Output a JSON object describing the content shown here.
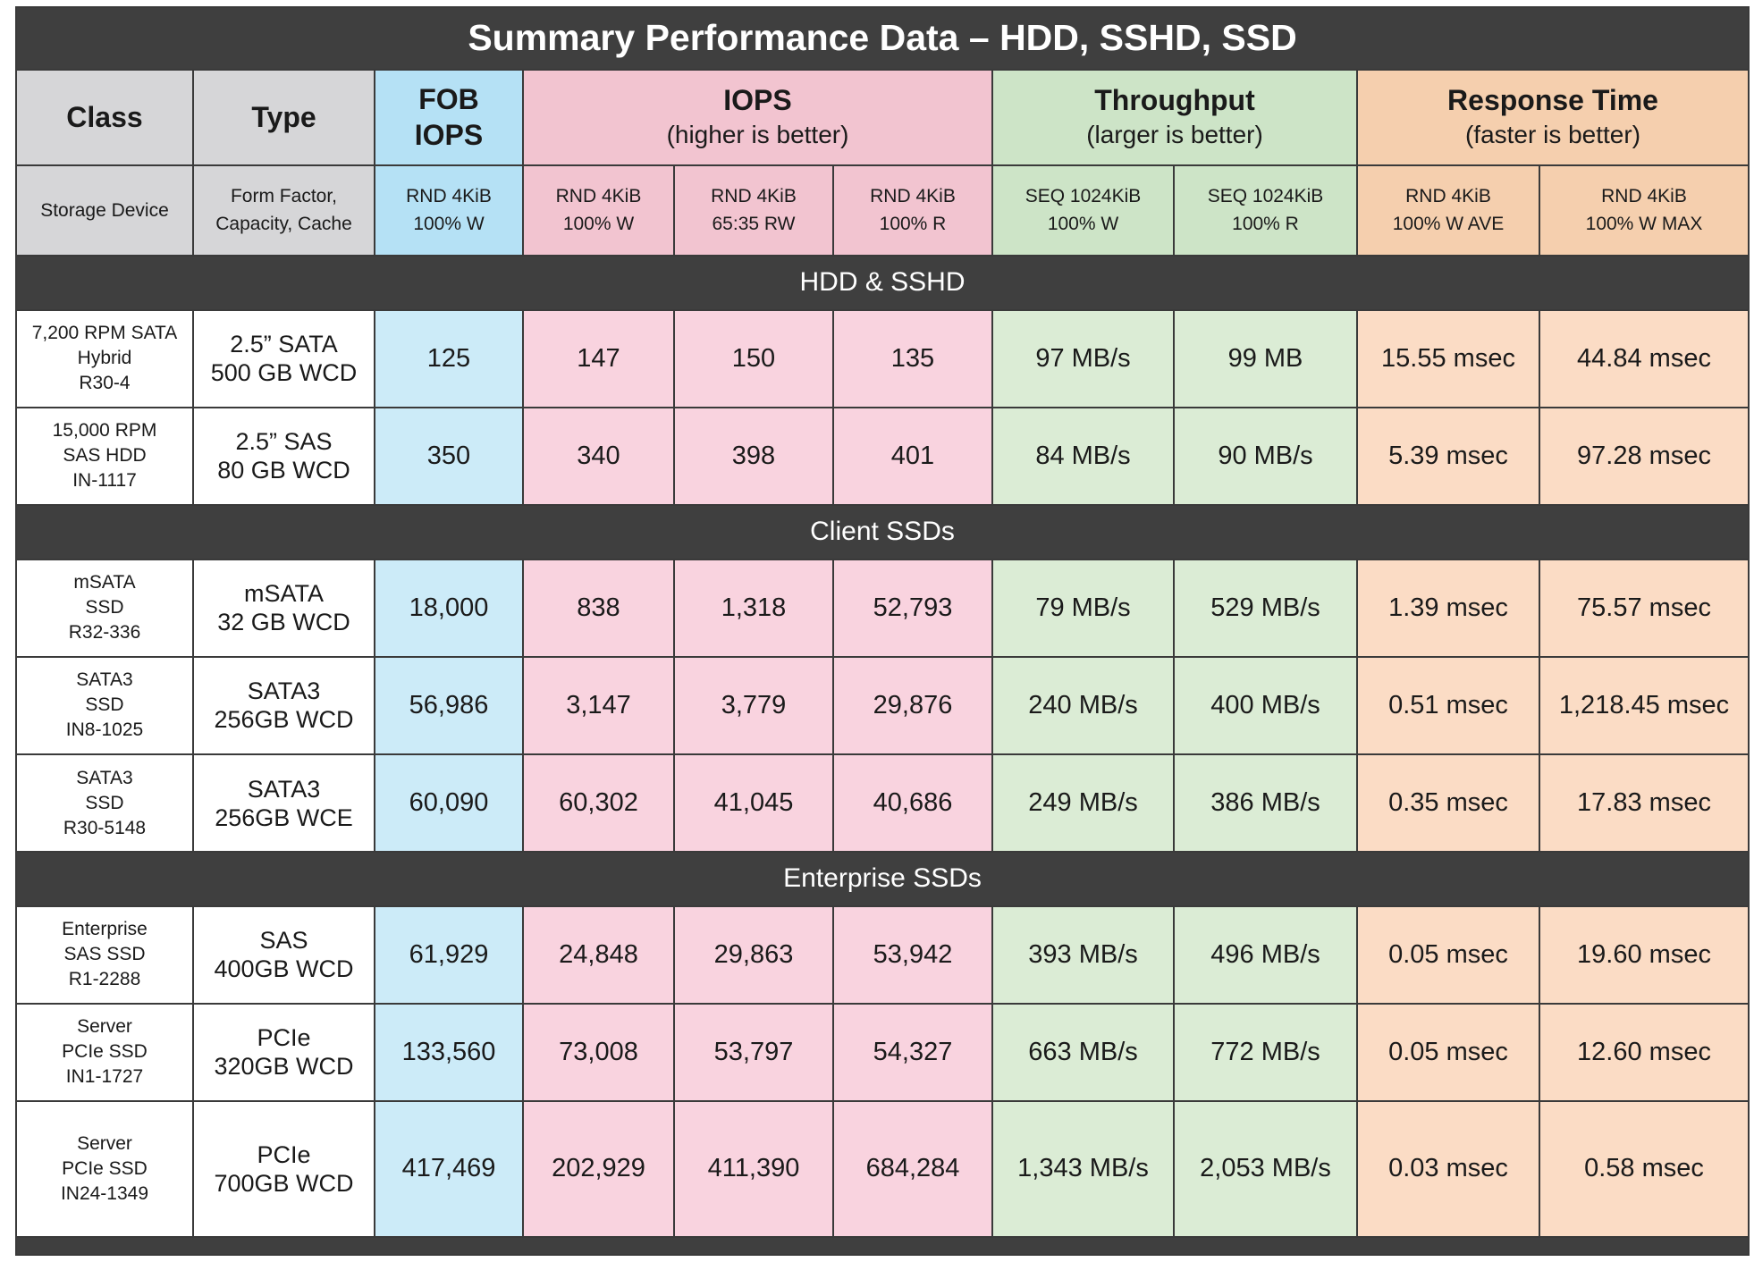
{
  "title": "Summary Performance Data – HDD, SSHD, SSD",
  "header": {
    "class": "Class",
    "type": "Type",
    "fob": [
      "FOB",
      "IOPS"
    ],
    "iops": {
      "main": "IOPS",
      "sub": "(higher is better)"
    },
    "throughput": {
      "main": "Throughput",
      "sub": "(larger is better)"
    },
    "response": {
      "main": "Response Time",
      "sub": "(faster is better)"
    }
  },
  "subheader": [
    [
      "Storage Device"
    ],
    [
      "Form Factor,",
      "Capacity, Cache"
    ],
    [
      "RND 4KiB",
      "100% W"
    ],
    [
      "RND 4KiB",
      "100% W"
    ],
    [
      "RND 4KiB",
      "65:35 RW"
    ],
    [
      "RND 4KiB",
      "100% R"
    ],
    [
      "SEQ 1024KiB",
      "100% W"
    ],
    [
      "SEQ 1024KiB",
      "100% R"
    ],
    [
      "RND 4KiB",
      "100% W AVE"
    ],
    [
      "RND 4KiB",
      "100% W MAX"
    ]
  ],
  "sections": [
    {
      "name": "HDD & SSHD",
      "rows": [
        {
          "device": [
            "7,200 RPM SATA",
            "Hybrid",
            "R30-4"
          ],
          "type": [
            "2.5” SATA",
            "500 GB WCD"
          ],
          "values": [
            "125",
            "147",
            "150",
            "135",
            "97 MB/s",
            "99 MB",
            "15.55 msec",
            "44.84 msec"
          ]
        },
        {
          "device": [
            "15,000 RPM",
            "SAS HDD",
            "IN-1117"
          ],
          "type": [
            "2.5” SAS",
            "80 GB WCD"
          ],
          "values": [
            "350",
            "340",
            "398",
            "401",
            "84 MB/s",
            "90 MB/s",
            "5.39 msec",
            "97.28 msec"
          ]
        }
      ]
    },
    {
      "name": "Client SSDs",
      "rows": [
        {
          "device": [
            "mSATA",
            "SSD",
            "R32-336"
          ],
          "type": [
            "mSATA",
            "32 GB WCD"
          ],
          "values": [
            "18,000",
            "838",
            "1,318",
            "52,793",
            "79 MB/s",
            "529 MB/s",
            "1.39 msec",
            "75.57 msec"
          ]
        },
        {
          "device": [
            "SATA3",
            "SSD",
            "IN8-1025"
          ],
          "type": [
            "SATA3",
            "256GB WCD"
          ],
          "values": [
            "56,986",
            "3,147",
            "3,779",
            "29,876",
            "240 MB/s",
            "400 MB/s",
            "0.51 msec",
            "1,218.45 msec"
          ]
        },
        {
          "device": [
            "SATA3",
            "SSD",
            "R30-5148"
          ],
          "type": [
            "SATA3",
            "256GB WCE"
          ],
          "values": [
            "60,090",
            "60,302",
            "41,045",
            "40,686",
            "249 MB/s",
            "386 MB/s",
            "0.35 msec",
            "17.83 msec"
          ]
        }
      ]
    },
    {
      "name": "Enterprise SSDs",
      "rows": [
        {
          "device": [
            "Enterprise",
            "SAS SSD",
            "R1-2288"
          ],
          "type": [
            "SAS",
            "400GB WCD"
          ],
          "values": [
            "61,929",
            "24,848",
            "29,863",
            "53,942",
            "393 MB/s",
            "496 MB/s",
            "0.05 msec",
            "19.60 msec"
          ]
        },
        {
          "device": [
            "Server",
            "PCIe SSD",
            "IN1-1727"
          ],
          "type": [
            "PCIe",
            "320GB WCD"
          ],
          "values": [
            "133,560",
            "73,008",
            "53,797",
            "54,327",
            "663 MB/s",
            "772 MB/s",
            "0.05 msec",
            "12.60 msec"
          ]
        },
        {
          "device": [
            "Server",
            "PCIe SSD",
            "IN24-1349"
          ],
          "type": [
            "PCIe",
            "700GB WCD"
          ],
          "values": [
            "417,469",
            "202,929",
            "411,390",
            "684,284",
            "1,343 MB/s",
            "2,053 MB/s",
            "0.03 msec",
            "0.58 msec"
          ]
        }
      ]
    }
  ]
}
